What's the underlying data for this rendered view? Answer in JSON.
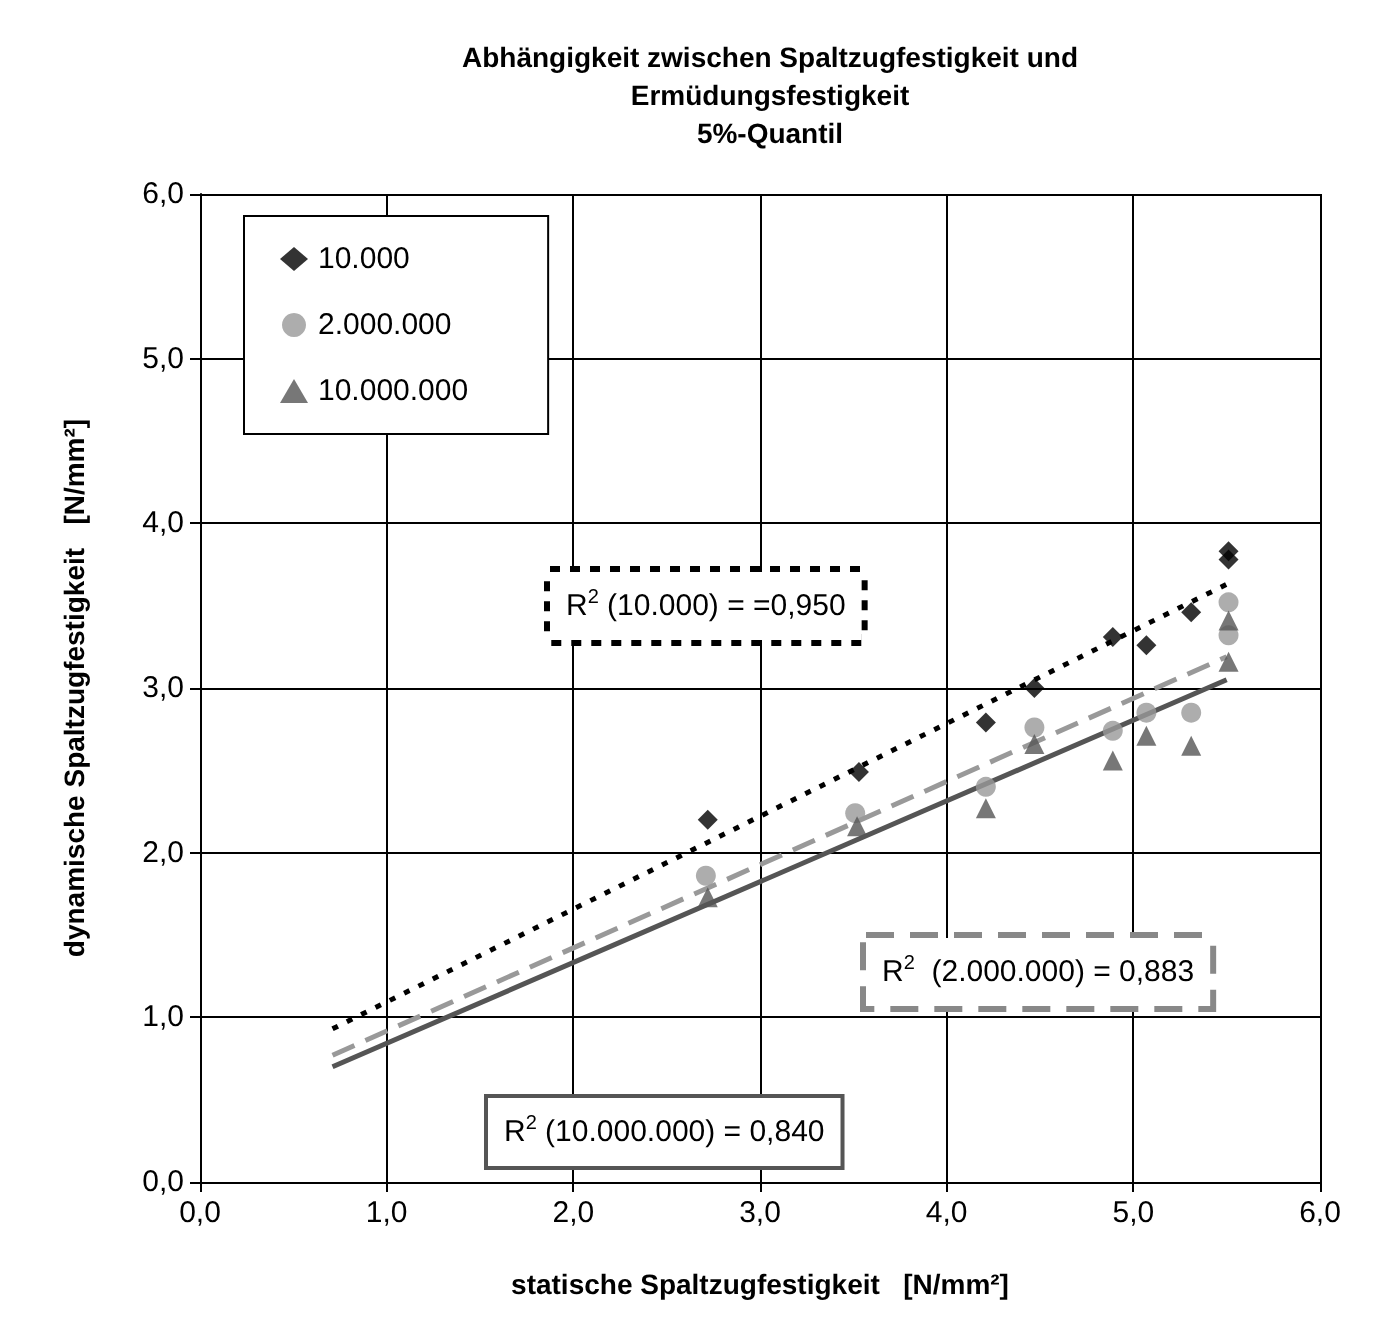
{
  "chart_data": {
    "type": "scatter",
    "title": "Abhängigkeit zwischen Spaltzugfestigkeit und\nErmüdungsfestigkeit\n5%-Quantil",
    "xlabel": "statische Spaltzugfestigkeit   [N/mm²]",
    "ylabel": "dynamische Spaltzugfestigkeit   [N/mm²]",
    "xlim": [
      0,
      6
    ],
    "xticks": [
      {
        "value": 0,
        "label": "0,0"
      },
      {
        "value": 1,
        "label": "1,0"
      },
      {
        "value": 2,
        "label": "2,0"
      },
      {
        "value": 3,
        "label": "3,0"
      },
      {
        "value": 4,
        "label": "4,0"
      },
      {
        "value": 5,
        "label": "5,0"
      },
      {
        "value": 6,
        "label": "6,0"
      }
    ],
    "ylim": [
      0,
      6
    ],
    "yticks": [
      {
        "value": 0,
        "label": "0,0"
      },
      {
        "value": 1,
        "label": "1,0"
      },
      {
        "value": 2,
        "label": "2,0"
      },
      {
        "value": 3,
        "label": "3,0"
      },
      {
        "value": 4,
        "label": "4,0"
      },
      {
        "value": 5,
        "label": "5,0"
      },
      {
        "value": 6,
        "label": "6,0"
      }
    ],
    "grid": true,
    "legend": "top left",
    "series": [
      {
        "name": "10.000",
        "marker": "diamond",
        "color": "#000000",
        "x": [
          2.72,
          3.53,
          4.21,
          4.47,
          4.89,
          5.07,
          5.31,
          5.51,
          5.51
        ],
        "values": [
          2.2,
          2.49,
          2.79,
          3.0,
          3.31,
          3.26,
          3.46,
          3.78,
          3.83
        ]
      },
      {
        "name": "2.000.000",
        "marker": "circle",
        "color": "#999999",
        "x": [
          2.71,
          3.51,
          4.21,
          4.47,
          4.89,
          5.07,
          5.31,
          5.51,
          5.51
        ],
        "values": [
          1.86,
          2.24,
          2.4,
          2.76,
          2.74,
          2.85,
          2.85,
          3.52,
          3.32
        ]
      },
      {
        "name": "10.000.000",
        "marker": "triangle",
        "color": "#555555",
        "x": [
          2.72,
          3.52,
          4.21,
          4.47,
          4.89,
          5.07,
          5.31,
          5.51,
          5.51
        ],
        "values": [
          1.73,
          2.16,
          2.27,
          2.66,
          2.56,
          2.71,
          2.65,
          3.41,
          3.16
        ]
      },
      {
        "type": "line",
        "marker": "none",
        "line_style": "dotted",
        "color": "#000000",
        "x": [
          0.71,
          5.5
        ],
        "values": [
          0.93,
          3.63
        ]
      },
      {
        "type": "line",
        "marker": "none",
        "line_style": "dashed",
        "color": "#999999",
        "x": [
          0.71,
          5.5
        ],
        "values": [
          0.77,
          3.19
        ]
      },
      {
        "type": "line",
        "marker": "none",
        "line_style": "solid",
        "color": "#555555",
        "x": [
          0.71,
          5.5
        ],
        "values": [
          0.7,
          3.05
        ]
      }
    ],
    "annotations": [
      "R$^{2}$ (10.000) = =0,950",
      "R$^{2}$  (2.000.000) = 0,883",
      "R$^{2}$ (10.000.000) = 0,840"
    ]
  }
}
